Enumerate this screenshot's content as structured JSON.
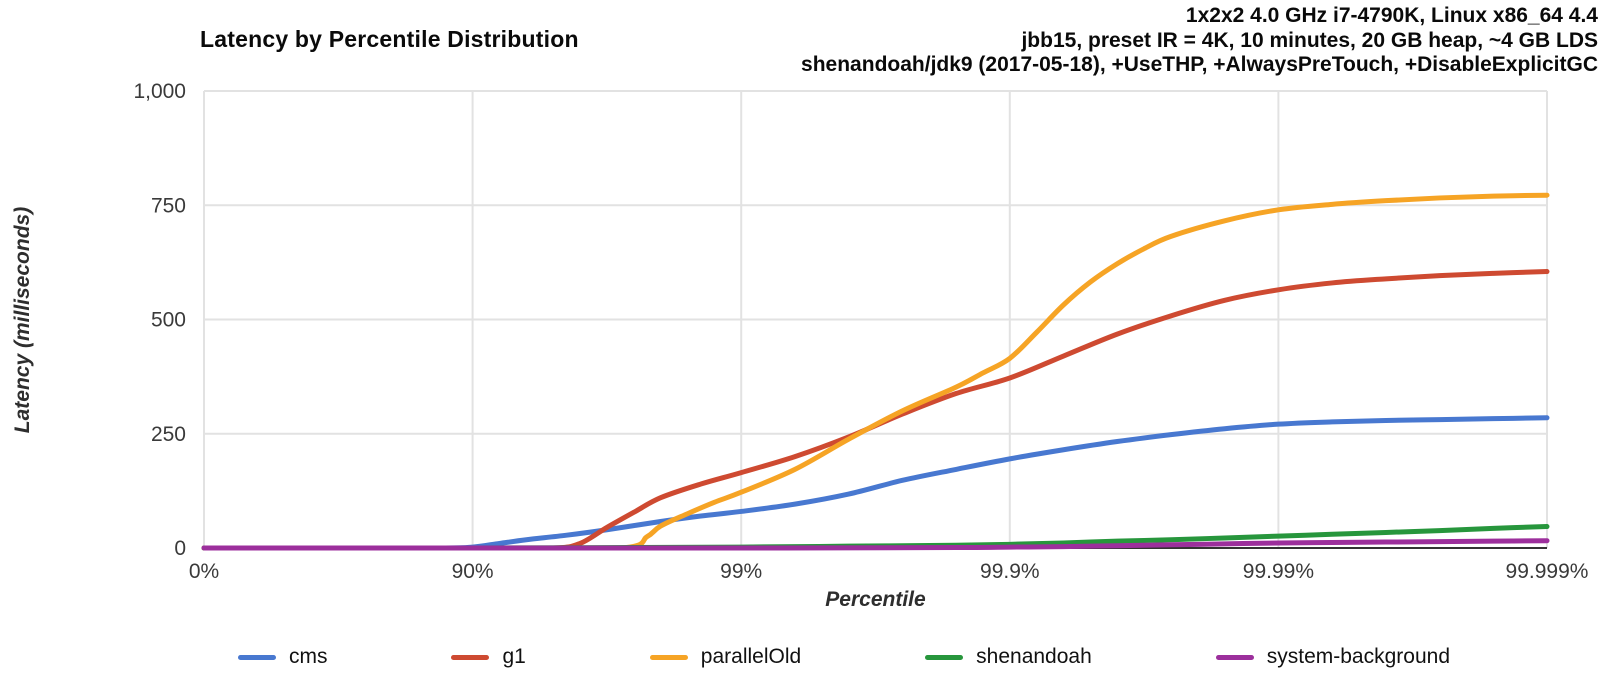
{
  "title": "Latency by Percentile Distribution",
  "header": {
    "line1": "1x2x2 4.0 GHz i7-4790K, Linux x86_64 4.4",
    "line2": "jbb15, preset IR = 4K, 10 minutes, 20 GB heap, ~4 GB LDS",
    "line3": "shenandoah/jdk9 (2017-05-18), +UseTHP, +AlwaysPreTouch, +DisableExplicitGC"
  },
  "axes": {
    "x_title": "Percentile",
    "y_title": "Latency (milliseconds)"
  },
  "colors": {
    "grid": "#e2e2e2",
    "axis_line": "#333333",
    "tick_text": "#3a3a3a"
  },
  "chart_data": {
    "type": "line",
    "title": "Latency by Percentile Distribution",
    "xlabel": "Percentile",
    "ylabel": "Latency (milliseconds)",
    "x_scale": "log-percentile, x = log10(1/(1-p)) decades",
    "xlim_decades": [
      0,
      5
    ],
    "ylim": [
      0,
      1000
    ],
    "grid": true,
    "legend_position": "bottom",
    "x_ticks": [
      {
        "d": 0,
        "label": "0%"
      },
      {
        "d": 1,
        "label": "90%"
      },
      {
        "d": 2,
        "label": "99%"
      },
      {
        "d": 3,
        "label": "99.9%"
      },
      {
        "d": 4,
        "label": "99.99%"
      },
      {
        "d": 5,
        "label": "99.999%"
      }
    ],
    "y_ticks": [
      {
        "v": 0,
        "label": "0"
      },
      {
        "v": 250,
        "label": "250"
      },
      {
        "v": 500,
        "label": "500"
      },
      {
        "v": 750,
        "label": "750"
      },
      {
        "v": 1000,
        "label": "1,000"
      }
    ],
    "series": [
      {
        "name": "cms",
        "color": "#4878d0",
        "points_decade_ms": [
          [
            0,
            0
          ],
          [
            0.5,
            0
          ],
          [
            0.9,
            0
          ],
          [
            1,
            2
          ],
          [
            1.1,
            10
          ],
          [
            1.2,
            18
          ],
          [
            1.35,
            28
          ],
          [
            1.5,
            40
          ],
          [
            1.7,
            58
          ],
          [
            1.85,
            70
          ],
          [
            2,
            80
          ],
          [
            2.2,
            96
          ],
          [
            2.4,
            118
          ],
          [
            2.6,
            148
          ],
          [
            2.8,
            172
          ],
          [
            3,
            195
          ],
          [
            3.2,
            215
          ],
          [
            3.4,
            233
          ],
          [
            3.6,
            248
          ],
          [
            3.8,
            261
          ],
          [
            4,
            271
          ],
          [
            4.2,
            276
          ],
          [
            4.4,
            279
          ],
          [
            4.6,
            281
          ],
          [
            4.8,
            283
          ],
          [
            5,
            285
          ]
        ]
      },
      {
        "name": "g1",
        "color": "#ce4a31",
        "points_decade_ms": [
          [
            0,
            0
          ],
          [
            1,
            0
          ],
          [
            1.3,
            0
          ],
          [
            1.4,
            10
          ],
          [
            1.5,
            45
          ],
          [
            1.6,
            78
          ],
          [
            1.7,
            110
          ],
          [
            1.85,
            140
          ],
          [
            2,
            165
          ],
          [
            2.2,
            200
          ],
          [
            2.4,
            243
          ],
          [
            2.6,
            293
          ],
          [
            2.8,
            338
          ],
          [
            3,
            372
          ],
          [
            3.2,
            420
          ],
          [
            3.4,
            468
          ],
          [
            3.6,
            508
          ],
          [
            3.8,
            542
          ],
          [
            4,
            565
          ],
          [
            4.2,
            580
          ],
          [
            4.4,
            589
          ],
          [
            4.6,
            596
          ],
          [
            4.8,
            601
          ],
          [
            5,
            605
          ]
        ]
      },
      {
        "name": "parallelOld",
        "color": "#f6a425",
        "points_decade_ms": [
          [
            0,
            0
          ],
          [
            1,
            0
          ],
          [
            1.55,
            0
          ],
          [
            1.65,
            25
          ],
          [
            1.7,
            48
          ],
          [
            1.8,
            75
          ],
          [
            1.9,
            100
          ],
          [
            2,
            122
          ],
          [
            2.2,
            172
          ],
          [
            2.4,
            238
          ],
          [
            2.6,
            300
          ],
          [
            2.8,
            352
          ],
          [
            2.9,
            383
          ],
          [
            3,
            415
          ],
          [
            3.1,
            472
          ],
          [
            3.2,
            532
          ],
          [
            3.3,
            582
          ],
          [
            3.4,
            622
          ],
          [
            3.5,
            655
          ],
          [
            3.6,
            682
          ],
          [
            3.8,
            716
          ],
          [
            4,
            740
          ],
          [
            4.2,
            752
          ],
          [
            4.4,
            760
          ],
          [
            4.6,
            766
          ],
          [
            4.8,
            770
          ],
          [
            5,
            772
          ]
        ]
      },
      {
        "name": "shenandoah",
        "color": "#27963c",
        "points_decade_ms": [
          [
            0,
            0
          ],
          [
            1,
            0
          ],
          [
            2,
            2
          ],
          [
            2.4,
            4
          ],
          [
            2.8,
            6
          ],
          [
            3,
            8
          ],
          [
            3.2,
            11
          ],
          [
            3.4,
            15
          ],
          [
            3.6,
            18
          ],
          [
            3.8,
            22
          ],
          [
            4,
            26
          ],
          [
            4.2,
            30
          ],
          [
            4.4,
            34
          ],
          [
            4.6,
            38
          ],
          [
            4.8,
            43
          ],
          [
            5,
            47
          ]
        ]
      },
      {
        "name": "system-background",
        "color": "#9c2f9c",
        "points_decade_ms": [
          [
            0,
            0
          ],
          [
            1,
            0
          ],
          [
            2,
            0
          ],
          [
            2.8,
            1
          ],
          [
            3,
            2
          ],
          [
            3.2,
            3
          ],
          [
            3.4,
            5
          ],
          [
            3.6,
            7
          ],
          [
            3.8,
            9
          ],
          [
            4,
            11
          ],
          [
            4.2,
            12
          ],
          [
            4.4,
            13
          ],
          [
            4.6,
            14
          ],
          [
            4.8,
            15
          ],
          [
            5,
            16
          ]
        ]
      }
    ]
  }
}
